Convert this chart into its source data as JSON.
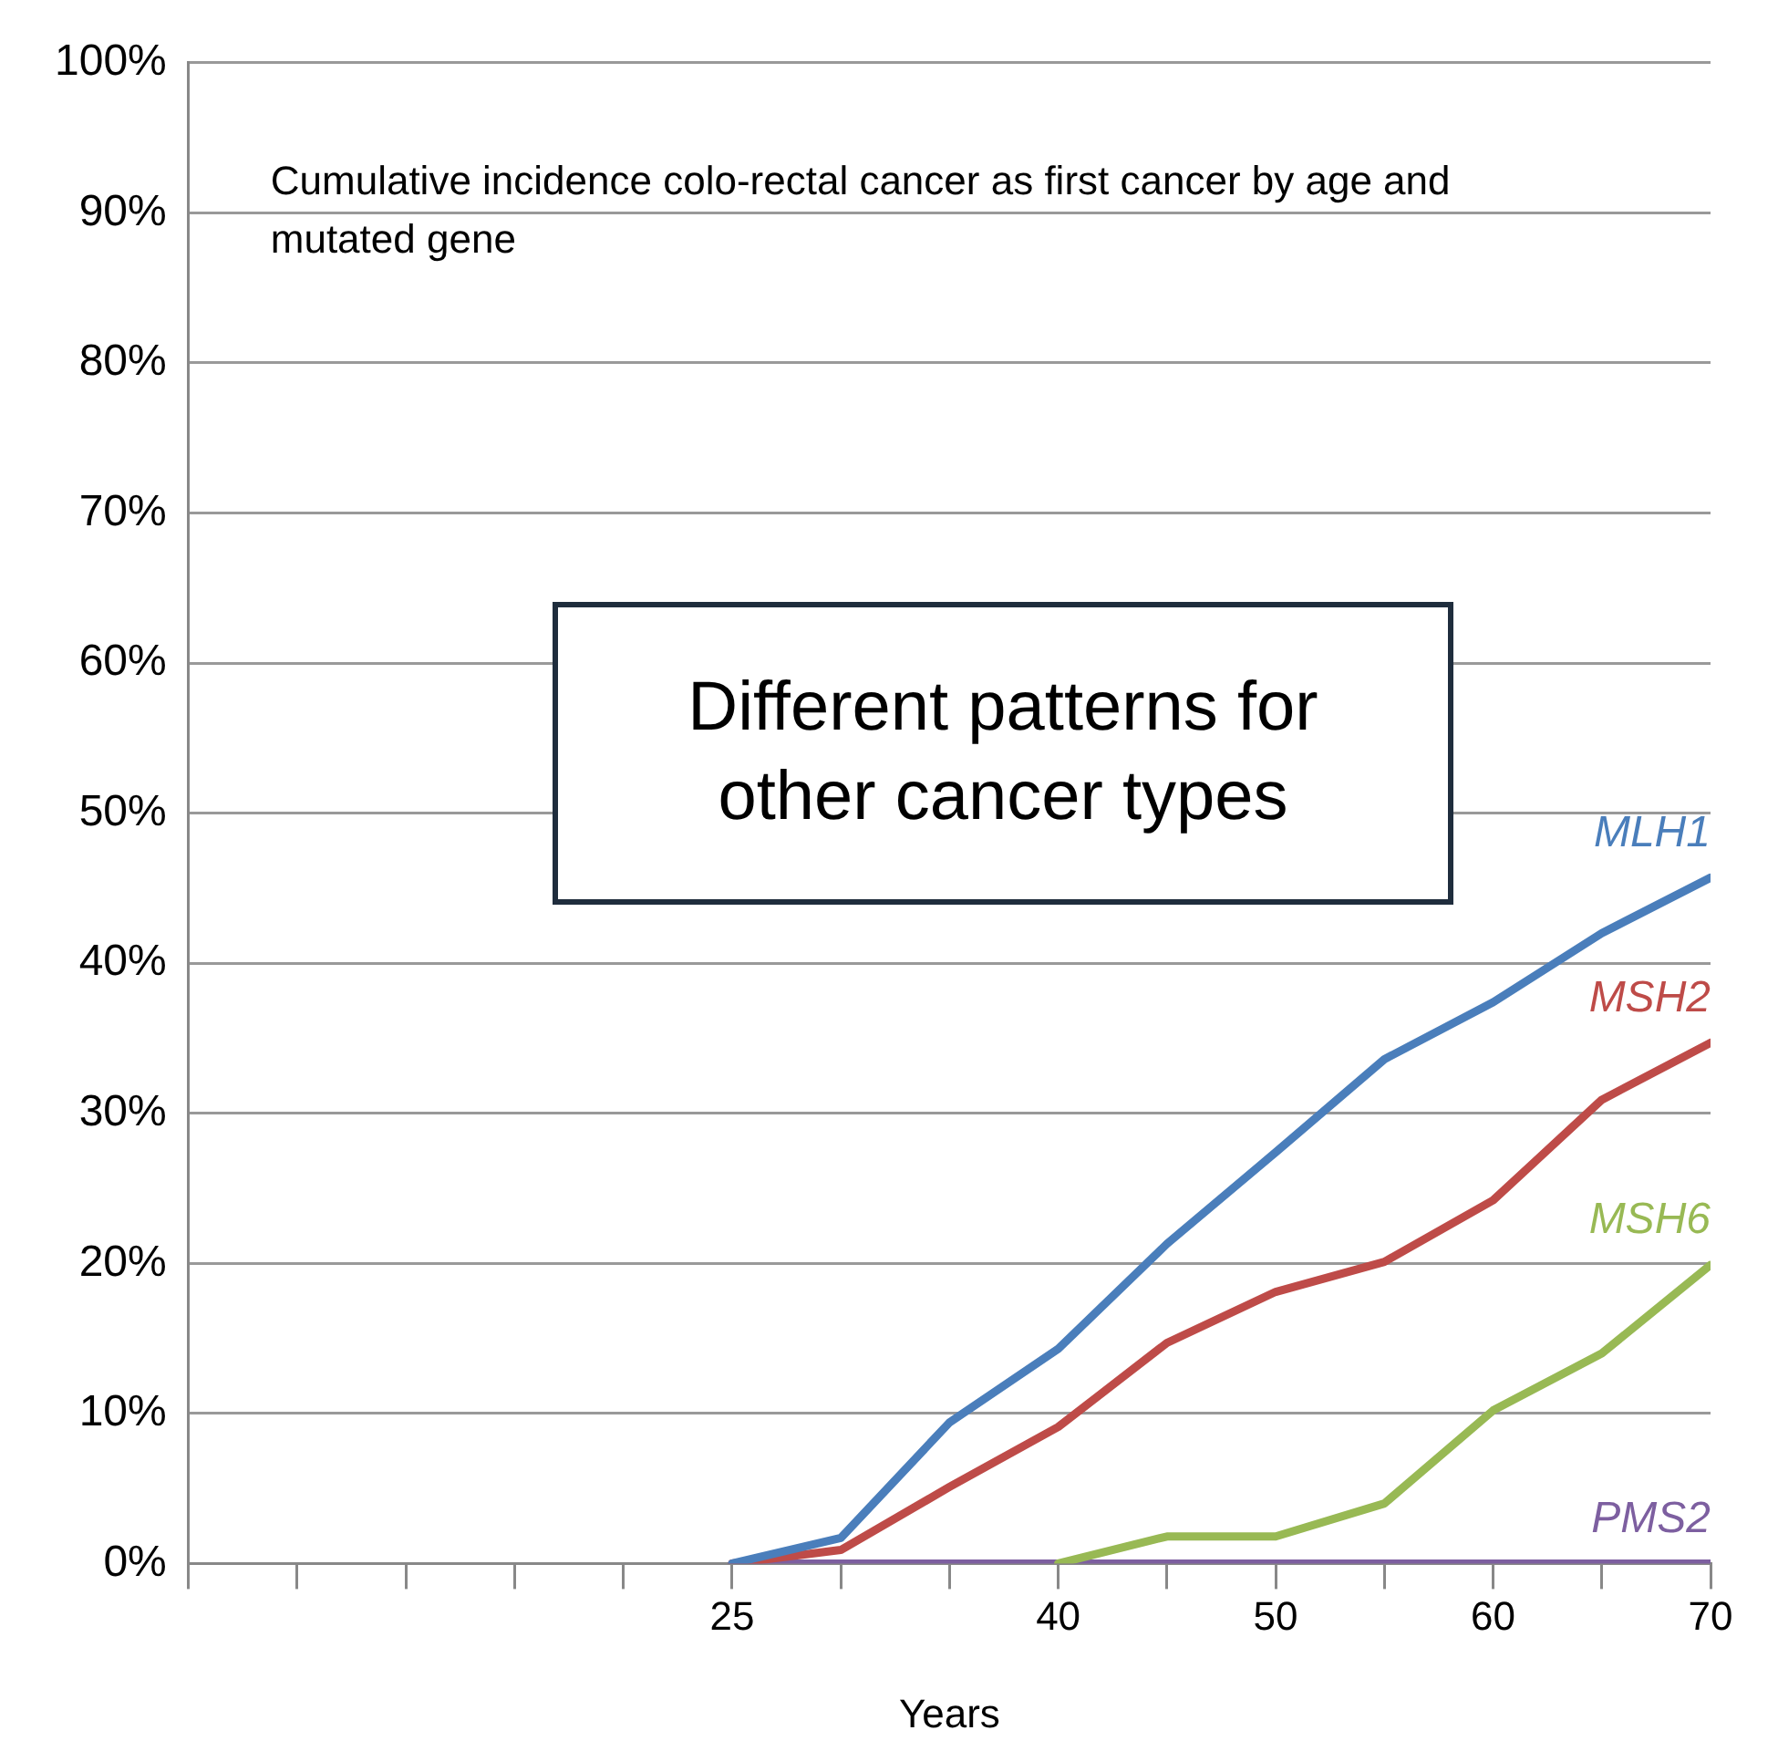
{
  "chart_data": {
    "type": "line",
    "title": "Cumulative incidence colo-rectal cancer as first cancer by age and mutated gene",
    "xlabel": "Years",
    "annotations": [
      "Different patterns for other cancer types"
    ],
    "x": [
      25,
      30,
      35,
      40,
      45,
      50,
      55,
      60,
      65,
      70
    ],
    "series": [
      {
        "name": "MLH1",
        "color": "#4a7ebb",
        "values": [
          0,
          1.7,
          9.4,
          14.3,
          21.3,
          27.4,
          33.6,
          37.4,
          42,
          45.7
        ]
      },
      {
        "name": "MSH2",
        "color": "#be4b48",
        "values": [
          0,
          0.9,
          5.1,
          9.1,
          14.7,
          18.1,
          20.1,
          24.2,
          30.9,
          34.7
        ]
      },
      {
        "name": "MSH6",
        "color": "#98b954",
        "values": [
          null,
          null,
          null,
          0,
          1.8,
          1.8,
          4,
          10.2,
          14,
          19.9
        ]
      },
      {
        "name": "PMS2",
        "color": "#7d5fa0",
        "values": [
          0,
          0,
          0,
          0,
          0,
          0,
          0,
          0,
          0,
          0
        ]
      }
    ],
    "xlim": [
      0,
      70
    ],
    "xticks": [
      {
        "value": 0,
        "label": null
      },
      {
        "value": 5,
        "label": null
      },
      {
        "value": 10,
        "label": null
      },
      {
        "value": 15,
        "label": null
      },
      {
        "value": 20,
        "label": null
      },
      25,
      {
        "value": 30,
        "label": null
      },
      {
        "value": 35,
        "label": null
      },
      40,
      {
        "value": 45,
        "label": null
      },
      50,
      {
        "value": 55,
        "label": null
      },
      60,
      {
        "value": 65,
        "label": null
      },
      70
    ],
    "ylim": [
      0,
      100
    ],
    "yticks": [
      {
        "value": 0,
        "label": "0%"
      },
      {
        "value": 10,
        "label": "10%"
      },
      {
        "value": 20,
        "label": "20%"
      },
      {
        "value": 30,
        "label": "30%"
      },
      {
        "value": 40,
        "label": "40%"
      },
      {
        "value": 50,
        "label": "50%"
      },
      {
        "value": 60,
        "label": "60%"
      },
      {
        "value": 70,
        "label": "70%"
      },
      {
        "value": 80,
        "label": "80%"
      },
      {
        "value": 90,
        "label": "90%"
      },
      {
        "value": 100,
        "label": "100%"
      }
    ],
    "grid": "y",
    "legend": false,
    "marker": "none",
    "line_style": "solid"
  }
}
